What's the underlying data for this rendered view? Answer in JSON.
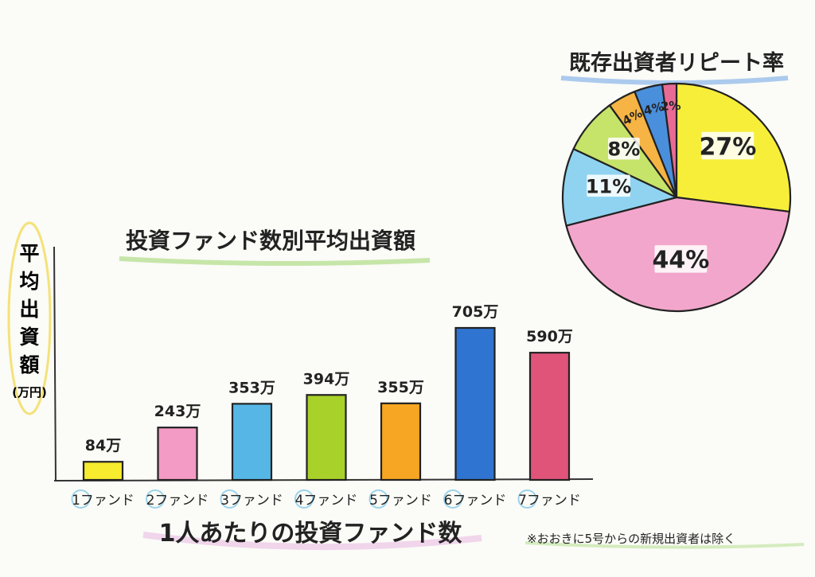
{
  "chart_data": [
    {
      "type": "bar",
      "title": "投資ファンド数別平均出資額",
      "ylabel": "平均出資額 (万円)",
      "xlabel": "1人あたりの投資ファンド数",
      "categories": [
        "1ファンド",
        "2ファンド",
        "3ファンド",
        "4ファンド",
        "5ファンド",
        "6ファンド",
        "7ファンド"
      ],
      "values": [
        84,
        243,
        353,
        394,
        355,
        705,
        590
      ],
      "data_labels": [
        "84万",
        "243万",
        "353万",
        "394万",
        "355万",
        "705万",
        "590万"
      ],
      "colors": [
        "#f7ec2e",
        "#f39bc4",
        "#56b7e6",
        "#a8d12a",
        "#f6a623",
        "#2f74d0",
        "#e0547a"
      ],
      "ylim": [
        0,
        800
      ],
      "grid": false,
      "legend": "none"
    },
    {
      "type": "pie",
      "title": "既存出資者リピート率",
      "values": [
        27,
        44,
        11,
        8,
        4,
        4,
        2
      ],
      "labels": [
        "27%",
        "44%",
        "11%",
        "8%",
        "4%",
        "4%",
        "2%"
      ],
      "colors": [
        "#f7ee3a",
        "#f3a6cb",
        "#8fd3f0",
        "#c6e36a",
        "#f5b443",
        "#4a8fdc",
        "#e86b95"
      ]
    }
  ],
  "footnote": "※おおきに5号からの新規出資者は除く",
  "ylabel_chars": [
    "平",
    "均",
    "出",
    "資",
    "額"
  ],
  "ylabel_unit": "(万円)"
}
